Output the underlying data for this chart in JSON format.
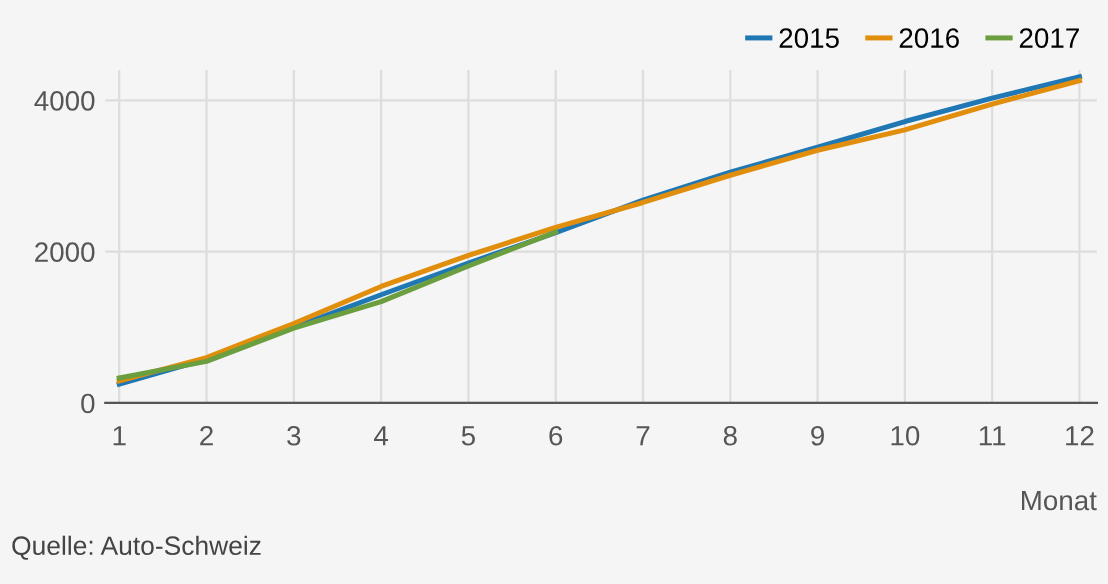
{
  "chart_data": {
    "type": "line",
    "xlabel": "Monat",
    "x": [
      1,
      2,
      3,
      4,
      5,
      6,
      7,
      8,
      9,
      10,
      11,
      12
    ],
    "series": [
      {
        "name": "2015",
        "color": "#1f78b4",
        "values": [
          250,
          580,
          1000,
          1430,
          1850,
          2250,
          2680,
          3050,
          3380,
          3720,
          4030,
          4310
        ]
      },
      {
        "name": "2016",
        "color": "#e08e0b",
        "values": [
          290,
          600,
          1050,
          1540,
          1950,
          2320,
          2650,
          3010,
          3340,
          3610,
          3950,
          4260
        ]
      },
      {
        "name": "2017",
        "color": "#6a9e3f",
        "values": [
          330,
          550,
          990,
          1340,
          1810,
          2260,
          null,
          null,
          null,
          null,
          null,
          null
        ]
      }
    ],
    "xlim": [
      0.84,
      12.2
    ],
    "ylim": [
      0,
      4400
    ],
    "xticks": [
      1,
      2,
      3,
      4,
      5,
      6,
      7,
      8,
      9,
      10,
      11,
      12
    ],
    "yticks": [
      0,
      2000,
      4000
    ],
    "grid": true,
    "legend": "top right",
    "marker": "none",
    "line_style": "solid",
    "annotations": [
      "Quelle: Auto-Schweiz"
    ]
  }
}
